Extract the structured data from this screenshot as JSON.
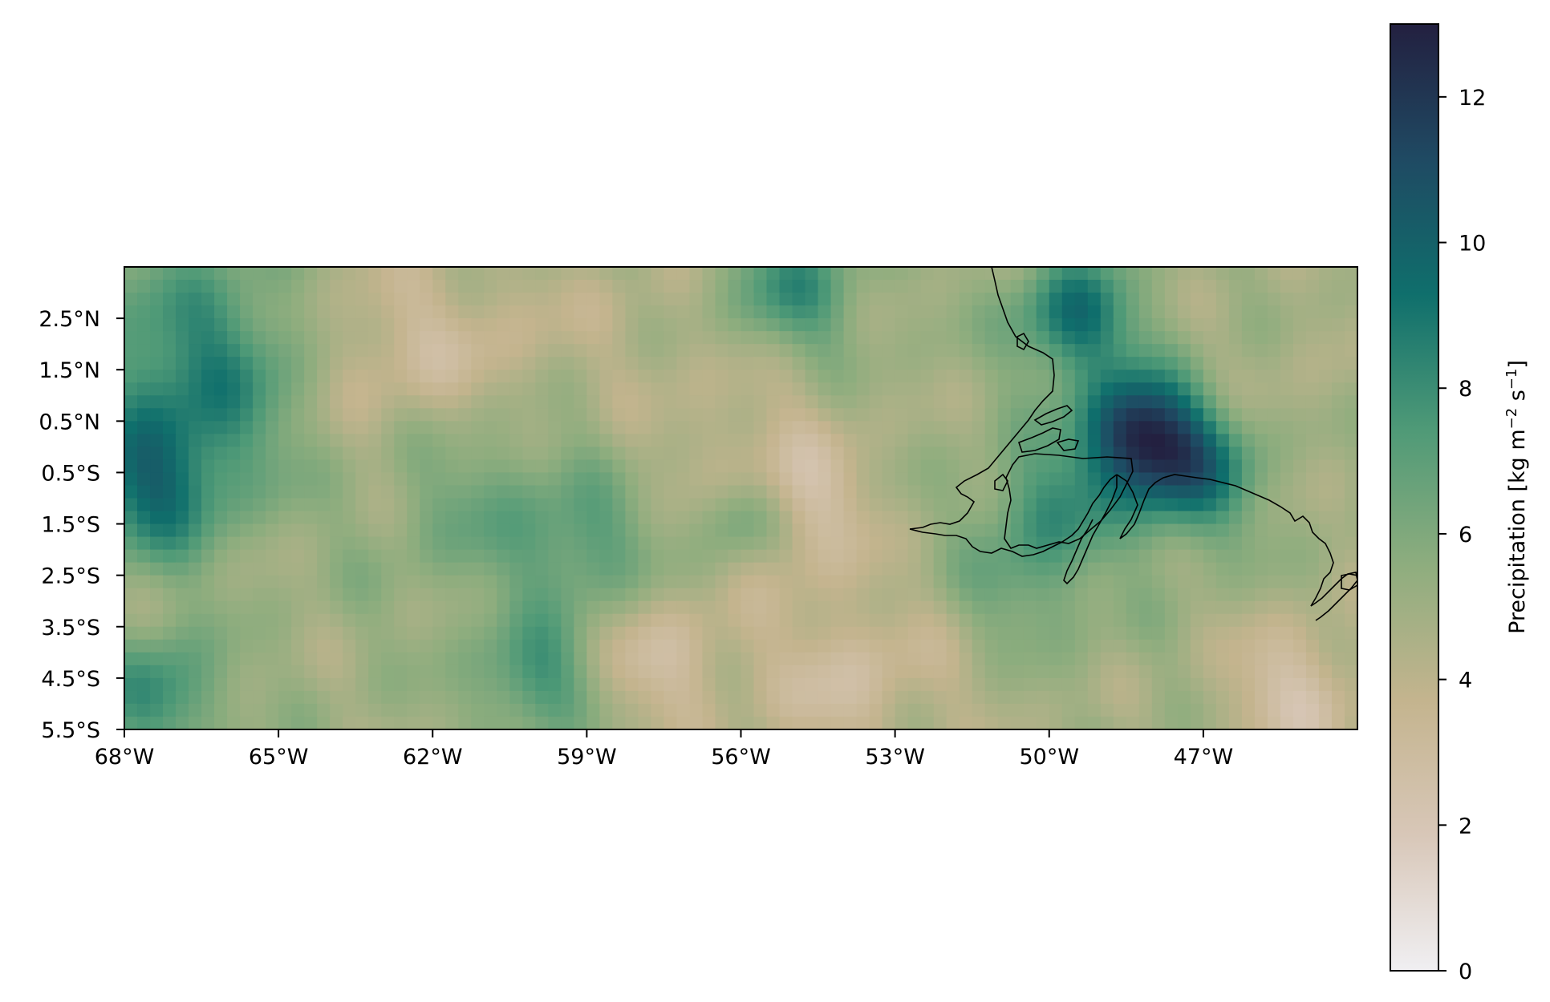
{
  "chart_data": {
    "type": "heatmap",
    "title": "",
    "xlabel": "",
    "ylabel": "",
    "x_range_deg": [
      -68,
      -44
    ],
    "y_range_deg": [
      -5.5,
      3.5
    ],
    "x_ticks": [
      {
        "value": -68,
        "label": "68°W"
      },
      {
        "value": -65,
        "label": "65°W"
      },
      {
        "value": -62,
        "label": "62°W"
      },
      {
        "value": -59,
        "label": "59°W"
      },
      {
        "value": -56,
        "label": "56°W"
      },
      {
        "value": -53,
        "label": "53°W"
      },
      {
        "value": -50,
        "label": "50°W"
      },
      {
        "value": -47,
        "label": "47°W"
      }
    ],
    "y_ticks": [
      {
        "value": 2.5,
        "label": "2.5°N"
      },
      {
        "value": 1.5,
        "label": "1.5°N"
      },
      {
        "value": 0.5,
        "label": "0.5°N"
      },
      {
        "value": -0.5,
        "label": "0.5°S"
      },
      {
        "value": -1.5,
        "label": "1.5°S"
      },
      {
        "value": -2.5,
        "label": "2.5°S"
      },
      {
        "value": -3.5,
        "label": "3.5°S"
      },
      {
        "value": -4.5,
        "label": "4.5°S"
      },
      {
        "value": -5.5,
        "label": "5.5°S"
      }
    ],
    "colorbar": {
      "label": "Precipitation [kg m",
      "label_sup1": "−2",
      "label_mid": " s",
      "label_sup2": "−1",
      "label_end": "]",
      "range": [
        0,
        13
      ],
      "ticks": [
        {
          "value": 0,
          "label": "0"
        },
        {
          "value": 2,
          "label": "2"
        },
        {
          "value": 4,
          "label": "4"
        },
        {
          "value": 6,
          "label": "6"
        },
        {
          "value": 8,
          "label": "8"
        },
        {
          "value": 10,
          "label": "10"
        },
        {
          "value": 12,
          "label": "12"
        }
      ],
      "colormap": [
        "#f0eff2",
        "#d8c7b8",
        "#c4b48e",
        "#8ead7e",
        "#4f9a77",
        "#0f6f6c",
        "#1f4a63",
        "#232040"
      ]
    },
    "field_features": [
      {
        "lon": -66.5,
        "lat": 1.5,
        "value": 8.5,
        "sigma": 1.6
      },
      {
        "lon": -67.5,
        "lat": -0.8,
        "value": 8.8,
        "sigma": 1.0
      },
      {
        "lon": -67.3,
        "lat": -4.8,
        "value": 8.2,
        "sigma": 0.8
      },
      {
        "lon": -63.0,
        "lat": 1.8,
        "value": 3.2,
        "sigma": 1.4
      },
      {
        "lon": -60.5,
        "lat": 2.0,
        "value": 4.0,
        "sigma": 1.2
      },
      {
        "lon": -58.0,
        "lat": 2.8,
        "value": 4.5,
        "sigma": 1.0
      },
      {
        "lon": -55.0,
        "lat": 3.0,
        "value": 8.0,
        "sigma": 0.9
      },
      {
        "lon": -56.0,
        "lat": 0.5,
        "value": 4.0,
        "sigma": 1.5
      },
      {
        "lon": -54.8,
        "lat": -1.2,
        "value": 3.0,
        "sigma": 1.0
      },
      {
        "lon": -61.0,
        "lat": -1.0,
        "value": 6.5,
        "sigma": 1.4
      },
      {
        "lon": -59.0,
        "lat": -2.0,
        "value": 7.0,
        "sigma": 0.9
      },
      {
        "lon": -56.0,
        "lat": -1.4,
        "value": 7.5,
        "sigma": 0.6
      },
      {
        "lon": -60.0,
        "lat": -4.5,
        "value": 7.8,
        "sigma": 0.8
      },
      {
        "lon": -57.5,
        "lat": -4.2,
        "value": 3.0,
        "sigma": 1.0
      },
      {
        "lon": -54.0,
        "lat": -4.5,
        "value": 3.0,
        "sigma": 1.2
      },
      {
        "lon": -51.0,
        "lat": -4.0,
        "value": 4.2,
        "sigma": 1.2
      },
      {
        "lon": -50.5,
        "lat": -3.0,
        "value": 6.8,
        "sigma": 1.0
      },
      {
        "lon": -49.5,
        "lat": 2.5,
        "value": 9.5,
        "sigma": 0.8
      },
      {
        "lon": -48.3,
        "lat": 0.3,
        "value": 11.5,
        "sigma": 0.8
      },
      {
        "lon": -47.3,
        "lat": -0.5,
        "value": 9.5,
        "sigma": 0.9
      },
      {
        "lon": -50.0,
        "lat": -1.2,
        "value": 7.5,
        "sigma": 0.9
      },
      {
        "lon": -45.0,
        "lat": 1.5,
        "value": 4.5,
        "sigma": 1.2
      },
      {
        "lon": -45.2,
        "lat": -4.8,
        "value": 2.5,
        "sigma": 1.0
      }
    ],
    "coastline_note": "Amazon delta and Marajó island coastline near 48–52°W"
  }
}
